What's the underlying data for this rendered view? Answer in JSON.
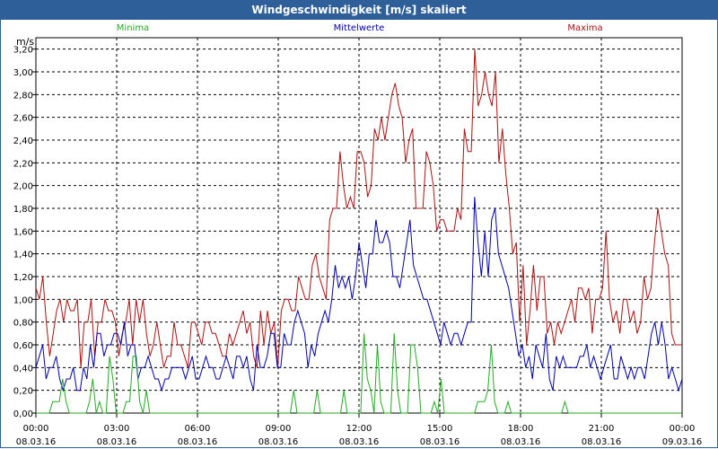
{
  "window": {
    "title": "Windgeschwindigkeit [m/s] skaliert"
  },
  "colors": {
    "minima": "#22aa22",
    "mittelwerte": "#0000aa",
    "maxima": "#aa1111",
    "grid": "#000000",
    "title_bg": "#2f5f98"
  },
  "chart_data": {
    "type": "line",
    "title": "Windgeschwindigkeit [m/s] skaliert",
    "ylabel": "m/s",
    "xlabel": "",
    "ylim": [
      0,
      3.3
    ],
    "xlim": [
      0,
      24
    ],
    "yticks": [
      0,
      0.2,
      0.4,
      0.6,
      0.8,
      1.0,
      1.2,
      1.4,
      1.6,
      1.8,
      2.0,
      2.2,
      2.4,
      2.6,
      2.8,
      3.0,
      3.2
    ],
    "ytick_labels": [
      "0,00",
      "0,20",
      "0,40",
      "0,60",
      "0,80",
      "1,00",
      "1,20",
      "1,40",
      "1,60",
      "1,80",
      "2,00",
      "2,20",
      "2,40",
      "2,60",
      "2,80",
      "3,00",
      "3,20"
    ],
    "xticks": [
      {
        "t": 0,
        "time": "00:00",
        "date": "08.03.16"
      },
      {
        "t": 3,
        "time": "03:00",
        "date": "08.03.16"
      },
      {
        "t": 6,
        "time": "06:00",
        "date": "08.03.16"
      },
      {
        "t": 9,
        "time": "09:00",
        "date": "08.03.16"
      },
      {
        "t": 12,
        "time": "12:00",
        "date": "08.03.16"
      },
      {
        "t": 15,
        "time": "15:00",
        "date": "08.03.16"
      },
      {
        "t": 18,
        "time": "18:00",
        "date": "08.03.16"
      },
      {
        "t": 21,
        "time": "21:00",
        "date": "08.03.16"
      },
      {
        "t": 24,
        "time": "00:00",
        "date": "09.03.16"
      }
    ],
    "legend": [
      {
        "name": "Minima",
        "position": "left"
      },
      {
        "name": "Mittelwerte",
        "position": "center"
      },
      {
        "name": "Maxima",
        "position": "right"
      }
    ],
    "series": [
      {
        "name": "Maxima",
        "values": [
          1.1,
          1.0,
          1.2,
          0.8,
          0.5,
          0.7,
          0.9,
          1.0,
          0.8,
          1.0,
          0.9,
          0.9,
          1.0,
          0.4,
          0.8,
          0.8,
          1.0,
          0.5,
          0.8,
          0.8,
          1.0,
          0.9,
          0.9,
          0.8,
          0.5,
          0.7,
          0.8,
          1.0,
          0.6,
          1.0,
          0.8,
          1.0,
          0.7,
          0.5,
          0.6,
          0.8,
          0.6,
          0.4,
          0.5,
          0.5,
          0.8,
          0.6,
          0.6,
          0.5,
          0.4,
          0.8,
          0.8,
          0.7,
          0.6,
          0.8,
          0.8,
          0.7,
          0.7,
          0.6,
          0.5,
          0.5,
          0.7,
          0.6,
          0.7,
          0.8,
          0.9,
          0.7,
          0.8,
          0.5,
          0.4,
          0.9,
          0.6,
          0.9,
          0.7,
          0.8,
          0.4,
          0.9,
          1.0,
          1.0,
          0.9,
          0.9,
          1.2,
          1.1,
          1.0,
          1.0,
          1.3,
          1.4,
          1.2,
          1.1,
          1.0,
          1.7,
          1.8,
          1.8,
          2.3,
          2.0,
          1.8,
          1.9,
          1.8,
          2.3,
          2.3,
          2.2,
          1.9,
          2.0,
          2.5,
          2.4,
          2.6,
          2.4,
          2.6,
          2.8,
          2.9,
          2.7,
          2.6,
          2.2,
          2.4,
          2.5,
          1.8,
          1.8,
          1.8,
          2.3,
          2.2,
          2.0,
          1.6,
          1.7,
          1.7,
          1.6,
          1.6,
          1.6,
          1.8,
          1.7,
          2.5,
          2.3,
          2.3,
          3.2,
          2.7,
          2.8,
          3.0,
          2.8,
          2.7,
          3.0,
          2.2,
          2.5,
          2.1,
          1.8,
          1.4,
          1.5,
          0.8,
          1.3,
          0.6,
          0.9,
          1.3,
          0.9,
          1.2,
          1.2,
          0.7,
          0.8,
          0.6,
          0.8,
          0.7,
          0.8,
          0.9,
          1.0,
          0.8,
          1.1,
          1.1,
          1.0,
          1.1,
          0.7,
          1.0,
          1.0,
          1.1,
          1.6,
          1.0,
          0.8,
          0.9,
          0.7,
          1.0,
          1.0,
          0.8,
          0.9,
          0.7,
          0.8,
          1.2,
          1.0,
          1.1,
          1.5,
          1.8,
          1.6,
          1.4,
          1.3,
          0.7,
          0.6,
          0.6,
          0.6
        ]
      },
      {
        "name": "Mittelwerte",
        "values": [
          0.4,
          0.5,
          0.6,
          0.3,
          0.4,
          0.4,
          0.5,
          0.3,
          0.2,
          0.3,
          0.3,
          0.4,
          0.2,
          0.2,
          0.4,
          0.3,
          0.6,
          0.4,
          0.7,
          0.7,
          0.5,
          0.6,
          0.6,
          0.7,
          0.7,
          0.6,
          0.8,
          0.5,
          0.6,
          0.6,
          0.3,
          0.4,
          0.4,
          0.5,
          0.4,
          0.3,
          0.3,
          0.2,
          0.3,
          0.3,
          0.4,
          0.4,
          0.4,
          0.4,
          0.3,
          0.4,
          0.5,
          0.3,
          0.3,
          0.4,
          0.5,
          0.4,
          0.4,
          0.3,
          0.3,
          0.4,
          0.5,
          0.4,
          0.3,
          0.5,
          0.5,
          0.4,
          0.5,
          0.3,
          0.2,
          0.6,
          0.4,
          0.4,
          0.5,
          0.7,
          0.7,
          0.4,
          0.4,
          0.7,
          0.6,
          0.6,
          0.8,
          0.9,
          0.8,
          0.7,
          0.4,
          0.6,
          0.5,
          0.7,
          0.8,
          0.9,
          0.8,
          1.0,
          1.3,
          1.1,
          1.2,
          1.1,
          1.2,
          1.0,
          1.2,
          1.5,
          1.3,
          1.1,
          1.4,
          1.4,
          1.7,
          1.5,
          1.5,
          1.6,
          1.5,
          1.2,
          1.2,
          1.1,
          1.3,
          1.5,
          1.7,
          1.3,
          1.2,
          1.1,
          1.0,
          1.0,
          0.9,
          0.8,
          0.7,
          0.6,
          0.8,
          0.7,
          0.6,
          0.7,
          0.7,
          0.6,
          0.7,
          0.8,
          0.8,
          1.9,
          1.5,
          1.2,
          1.6,
          1.2,
          1.7,
          1.8,
          1.4,
          1.3,
          1.2,
          1.1,
          0.9,
          0.7,
          0.5,
          0.6,
          0.4,
          0.5,
          0.3,
          0.6,
          0.5,
          0.4,
          0.7,
          0.3,
          0.2,
          0.5,
          0.4,
          0.5,
          0.4,
          0.4,
          0.4,
          0.4,
          0.5,
          0.5,
          0.6,
          0.4,
          0.5,
          0.4,
          0.3,
          0.4,
          0.5,
          0.6,
          0.3,
          0.3,
          0.5,
          0.4,
          0.3,
          0.4,
          0.3,
          0.4,
          0.4,
          0.3,
          0.5,
          0.7,
          0.8,
          0.6,
          0.8,
          0.6,
          0.3,
          0.4,
          0.3,
          0.2,
          0.3
        ]
      },
      {
        "name": "Minima",
        "values": [
          0.0,
          0.0,
          0.0,
          0.0,
          0.0,
          0.1,
          0.1,
          0.1,
          0.3,
          0.1,
          0.0,
          0.0,
          0.0,
          0.0,
          0.0,
          0.0,
          0.1,
          0.3,
          0.0,
          0.1,
          0.0,
          0.0,
          0.5,
          0.3,
          0.0,
          0.0,
          0.0,
          0.1,
          0.1,
          0.5,
          0.5,
          0.1,
          0.0,
          0.2,
          0.0,
          0.0,
          0.0,
          0.0,
          0.0,
          0.0,
          0.0,
          0.0,
          0.0,
          0.0,
          0.0,
          0.0,
          0.0,
          0.0,
          0.0,
          0.0,
          0.0,
          0.0,
          0.0,
          0.0,
          0.0,
          0.0,
          0.0,
          0.0,
          0.0,
          0.0,
          0.0,
          0.0,
          0.0,
          0.0,
          0.0,
          0.0,
          0.0,
          0.0,
          0.0,
          0.0,
          0.0,
          0.0,
          0.0,
          0.0,
          0.0,
          0.0,
          0.0,
          0.2,
          0.0,
          0.0,
          0.0,
          0.0,
          0.0,
          0.0,
          0.2,
          0.0,
          0.0,
          0.0,
          0.0,
          0.0,
          0.0,
          0.0,
          0.2,
          0.0,
          0.0,
          0.0,
          0.0,
          0.0,
          0.7,
          0.3,
          0.2,
          0.0,
          0.6,
          0.1,
          0.0,
          0.0,
          0.0,
          0.7,
          0.2,
          0.0,
          0.0,
          0.0,
          0.6,
          0.6,
          0.4,
          0.0,
          0.0,
          0.0,
          0.0,
          0.1,
          0.0,
          0.3,
          0.0,
          0.0,
          0.0,
          0.0,
          0.0,
          0.0,
          0.0,
          0.0,
          0.0,
          0.0,
          0.1,
          0.1,
          0.1,
          0.2,
          0.6,
          0.1,
          0.0,
          0.0,
          0.0,
          0.1,
          0.0,
          0.0,
          0.0,
          0.0,
          0.0,
          0.0,
          0.0,
          0.0,
          0.0,
          0.0,
          0.0,
          0.0,
          0.0,
          0.0,
          0.0,
          0.0,
          0.1,
          0.0,
          0.0,
          0.0,
          0.0,
          0.0,
          0.0,
          0.0,
          0.0,
          0.0,
          0.0,
          0.0,
          0.0,
          0.0,
          0.0,
          0.0,
          0.0,
          0.0,
          0.0,
          0.0,
          0.0,
          0.0,
          0.0,
          0.0,
          0.0,
          0.0,
          0.0,
          0.0,
          0.0,
          0.0,
          0.0,
          0.0,
          0.0,
          0.0,
          0.0,
          0.0
        ]
      }
    ]
  }
}
